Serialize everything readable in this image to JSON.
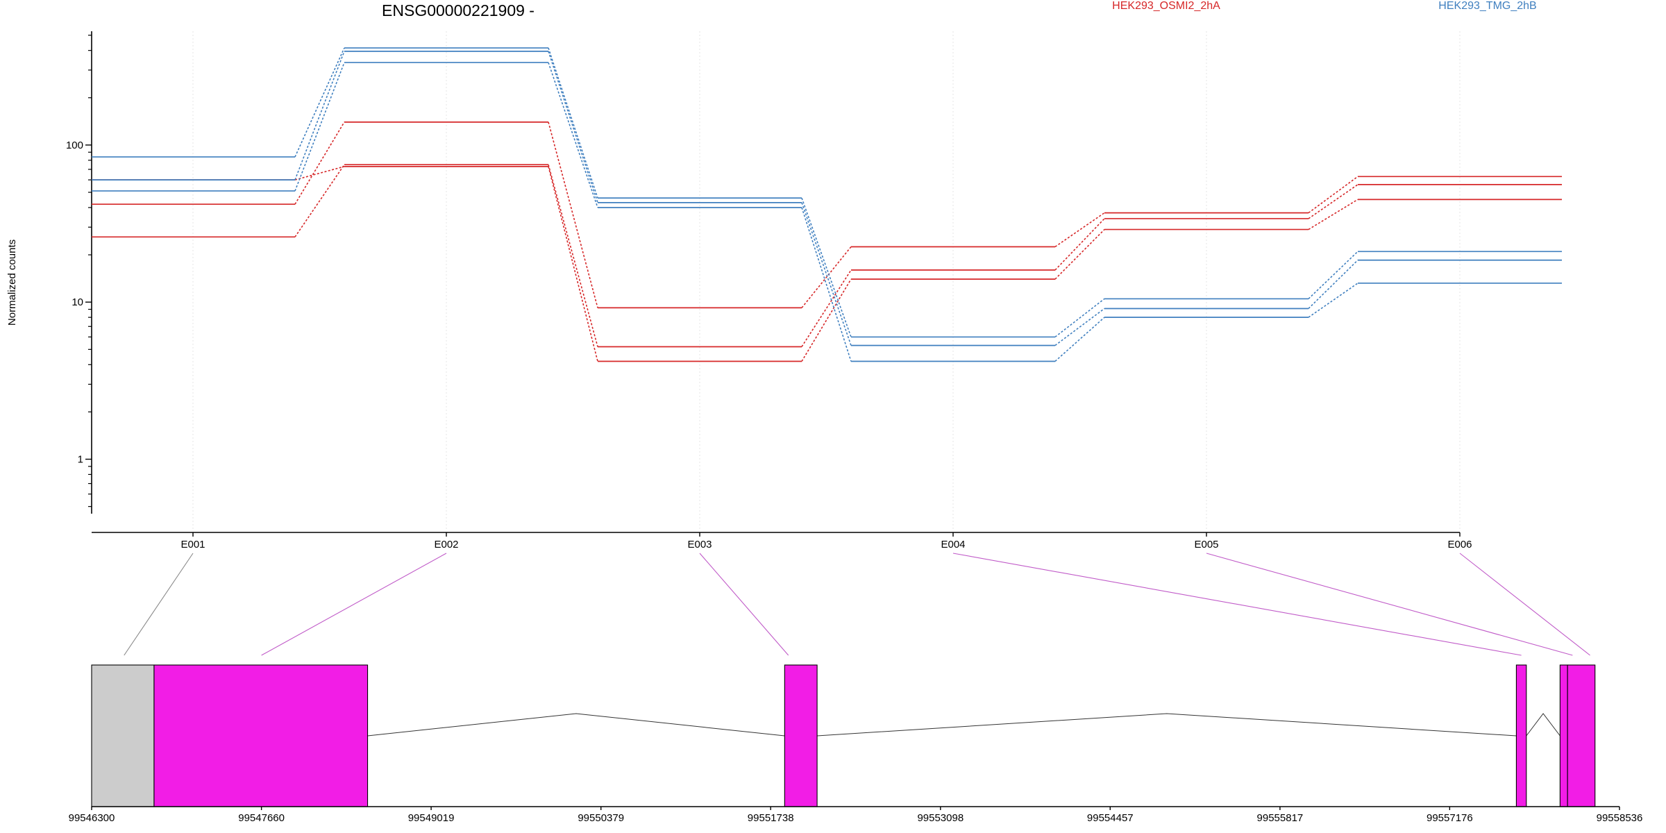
{
  "chart_data": {
    "type": "line",
    "title": "ENSG00000221909 -",
    "ylabel": "Normalized counts",
    "xlabel": "",
    "y_scale": "log10",
    "ylim": [
      0.45,
      530
    ],
    "y_ticks": [
      {
        "value": 1,
        "label": "1"
      },
      {
        "value": 10,
        "label": "10"
      },
      {
        "value": 100,
        "label": "100"
      }
    ],
    "categories": [
      "E001",
      "E002",
      "E003",
      "E004",
      "E005",
      "E006"
    ],
    "legend": [
      {
        "label": "HEK293_OSMI2_2hA",
        "color": "#d62728"
      },
      {
        "label": "HEK293_TMG_2hB",
        "color": "#3f7fbf"
      }
    ],
    "colors": {
      "osmi": "#d62728",
      "tmg": "#3f7fbf",
      "exon_dexseq": "#f21de6",
      "exon_other": "#cccccc",
      "link_gray": "#888888",
      "link_magenta": "#c05ac8"
    },
    "series": [
      {
        "group": "osmi",
        "values": [
          42,
          140,
          9.2,
          22.5,
          37,
          63
        ]
      },
      {
        "group": "osmi",
        "values": [
          26,
          75,
          5.2,
          16,
          34,
          56
        ]
      },
      {
        "group": "osmi",
        "values": [
          60,
          73,
          4.2,
          14,
          29,
          45
        ]
      },
      {
        "group": "tmg",
        "values": [
          84,
          415,
          46,
          6,
          10.5,
          21
        ]
      },
      {
        "group": "tmg",
        "values": [
          60,
          395,
          43,
          5.3,
          9.1,
          18.5
        ]
      },
      {
        "group": "tmg",
        "values": [
          51,
          335,
          40,
          4.2,
          8,
          13.2
        ]
      }
    ],
    "gene_model": {
      "coordinate_labels": [
        "99546300",
        "99547660",
        "99549019",
        "99550379",
        "99551738",
        "99553098",
        "99554457",
        "99555817",
        "99557176",
        "99558536"
      ],
      "coordinate_values": [
        99546300,
        99547660,
        99549019,
        99550379,
        99551738,
        99553098,
        99554457,
        99555817,
        99557176,
        99558536
      ],
      "exons": [
        {
          "start": 99546300,
          "end": 99546800,
          "type": "other"
        },
        {
          "start": 99546800,
          "end": 99548510,
          "type": "dexseq",
          "bin": "E002"
        },
        {
          "start": 99551850,
          "end": 99552110,
          "type": "dexseq",
          "bin": "E003"
        },
        {
          "start": 99557710,
          "end": 99557790,
          "type": "dexseq",
          "bin": "E004"
        },
        {
          "start": 99558060,
          "end": 99558120,
          "type": "dexseq",
          "bin": "E005"
        },
        {
          "start": 99558120,
          "end": 99558340,
          "type": "dexseq",
          "bin": "E006"
        }
      ],
      "exon_bin_links": [
        {
          "bin": "E001",
          "position": 99546560,
          "color": "link_gray"
        },
        {
          "bin": "E002",
          "position": 99547660,
          "color": "link_magenta"
        },
        {
          "bin": "E003",
          "position": 99551880,
          "color": "link_magenta"
        },
        {
          "bin": "E004",
          "position": 99557750,
          "color": "link_magenta"
        },
        {
          "bin": "E005",
          "position": 99558160,
          "color": "link_magenta"
        },
        {
          "bin": "E006",
          "position": 99558300,
          "color": "link_magenta"
        }
      ]
    }
  }
}
